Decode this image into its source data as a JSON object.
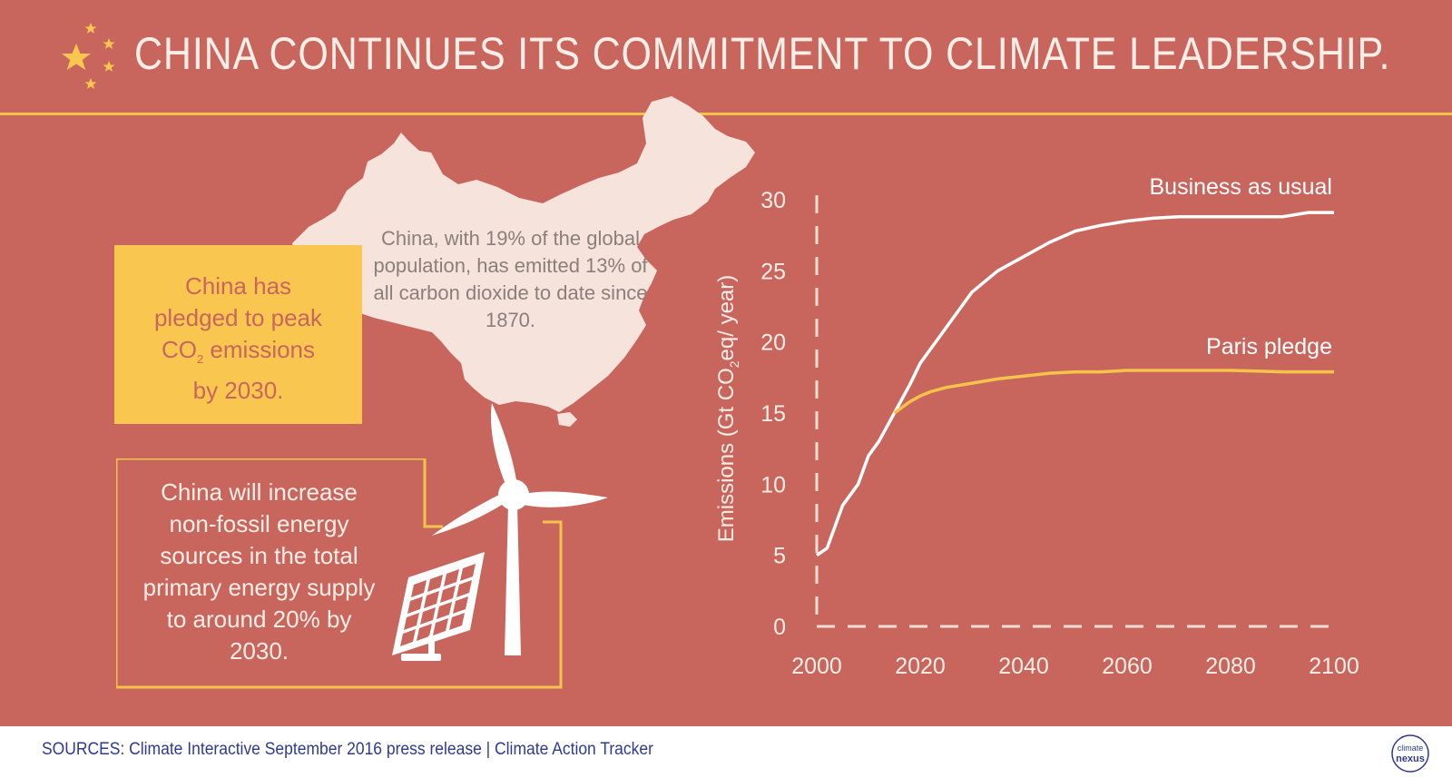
{
  "title": "CHINA CONTINUES ITS COMMITMENT TO CLIMATE LEADERSHIP.",
  "map_text": "China, with 19% of the global population, has emitted 13% of all carbon dioxide to date since 1870.",
  "pledge": {
    "line1": "China has",
    "line2": "pledged to peak",
    "co": "CO",
    "sub": "2",
    "line3_rest": " emissions",
    "line4": "by 2030."
  },
  "energy_text": "China will increase non-fossil energy sources in the total primary energy supply to around 20% by 2030.",
  "source": "SOURCES: Climate Interactive September 2016 press release | Climate Action Tracker",
  "logo": {
    "top": "climate",
    "bottom": "nexus"
  },
  "colors": {
    "background": "#c8665e",
    "accent": "#f5c24a",
    "text_light": "#fbeee6",
    "footer_text": "#2e3b8c"
  },
  "chart_data": {
    "type": "line",
    "title": "",
    "xlabel": "",
    "ylabel": "Emissions (Gt CO2eq/ year)",
    "ylabel_parts": {
      "pre": "Emissions (Gt CO",
      "sub": "2",
      "post": "eq/ year)"
    },
    "xlim": [
      2000,
      2100
    ],
    "ylim": [
      0,
      30
    ],
    "x_ticks": [
      2000,
      2020,
      2040,
      2060,
      2080,
      2100
    ],
    "y_ticks": [
      0,
      5,
      10,
      15,
      20,
      25,
      30
    ],
    "series": [
      {
        "name": "Business as usual",
        "color": "#ffffff",
        "x": [
          2000,
          2002,
          2005,
          2008,
          2010,
          2012,
          2015,
          2018,
          2020,
          2022,
          2025,
          2028,
          2030,
          2035,
          2040,
          2045,
          2050,
          2055,
          2060,
          2065,
          2070,
          2080,
          2090,
          2095,
          2100
        ],
        "y": [
          5.0,
          5.5,
          8.5,
          10.0,
          12.0,
          13.0,
          15.0,
          17.0,
          18.5,
          19.5,
          21.0,
          22.5,
          23.5,
          25.0,
          26.0,
          27.0,
          27.8,
          28.2,
          28.5,
          28.7,
          28.8,
          28.8,
          28.8,
          29.1,
          29.1
        ]
      },
      {
        "name": "Paris pledge",
        "color": "#f5c24a",
        "x": [
          2015,
          2018,
          2020,
          2022,
          2025,
          2030,
          2035,
          2040,
          2045,
          2050,
          2055,
          2060,
          2070,
          2080,
          2090,
          2100
        ],
        "y": [
          15.0,
          15.8,
          16.2,
          16.5,
          16.8,
          17.1,
          17.4,
          17.6,
          17.8,
          17.9,
          17.9,
          18.0,
          18.0,
          18.0,
          17.9,
          17.9
        ]
      }
    ]
  }
}
